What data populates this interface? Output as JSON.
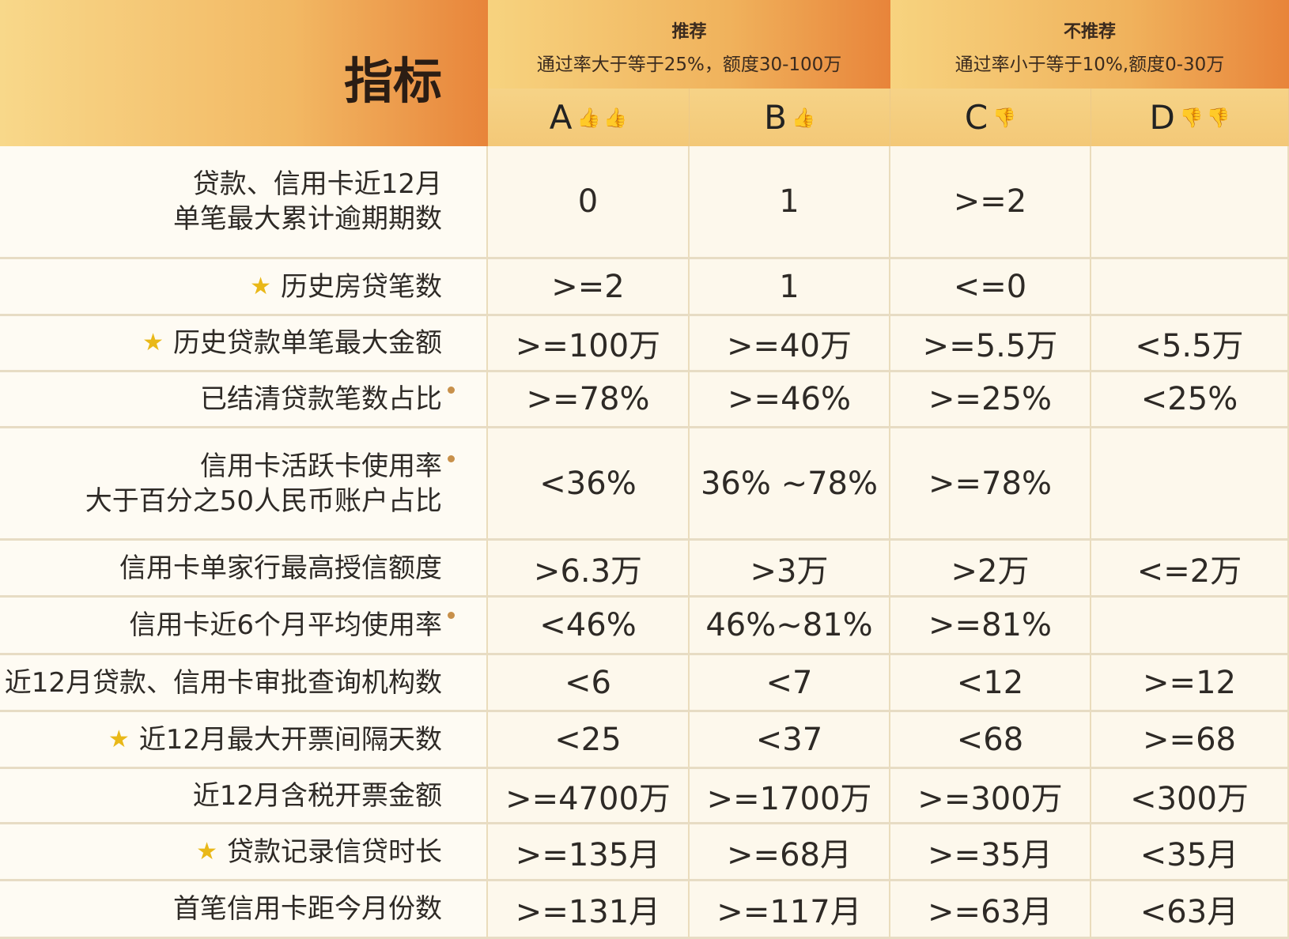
{
  "header": {
    "indicator_title": "指标",
    "groups": [
      {
        "title": "推荐",
        "subtitle": "通过率大于等于25%，额度30-100万"
      },
      {
        "title": "不推荐",
        "subtitle": "通过率小于等于10%,额度0-30万"
      }
    ],
    "columns": [
      {
        "label": "A",
        "icon": "thumbs-up-icon",
        "count": 2
      },
      {
        "label": "B",
        "icon": "thumbs-up-icon",
        "count": 1
      },
      {
        "label": "C",
        "icon": "thumbs-down-icon",
        "count": 1
      },
      {
        "label": "D",
        "icon": "thumbs-down-icon",
        "count": 2
      }
    ]
  },
  "colors": {
    "thumb_up": "#e5484d",
    "thumb_down": "#333333",
    "star": "#e9b818",
    "header_orange": "#e8843a",
    "header_yellow": "#f7d37f"
  },
  "rows": [
    {
      "label": "贷款、信用卡近12月\n单笔最大累计逾期期数",
      "star": false,
      "dot": false,
      "values": [
        "0",
        "1",
        ">=2",
        ""
      ]
    },
    {
      "label": "历史房贷笔数",
      "star": true,
      "dot": false,
      "values": [
        ">=2",
        "1",
        "<=0",
        ""
      ]
    },
    {
      "label": "历史贷款单笔最大金额",
      "star": true,
      "dot": false,
      "values": [
        ">=100万",
        ">=40万",
        ">=5.5万",
        "<5.5万"
      ]
    },
    {
      "label": "已结清贷款笔数占比",
      "star": false,
      "dot": true,
      "values": [
        ">=78%",
        ">=46%",
        ">=25%",
        "<25%"
      ]
    },
    {
      "label": "信用卡活跃卡使用率\n大于百分之50人民币账户占比",
      "star": false,
      "dot": true,
      "values": [
        "<36%",
        "36% ~78%",
        ">=78%",
        ""
      ]
    },
    {
      "label": "信用卡单家行最高授信额度",
      "star": false,
      "dot": false,
      "values": [
        ">6.3万",
        ">3万",
        ">2万",
        "<=2万"
      ]
    },
    {
      "label": "信用卡近6个月平均使用率",
      "star": false,
      "dot": true,
      "values": [
        "<46%",
        "46%~81%",
        ">=81%",
        ""
      ]
    },
    {
      "label": "近12月贷款、信用卡审批查询机构数",
      "star": false,
      "dot": false,
      "values": [
        "<6",
        "<7",
        "<12",
        ">=12"
      ]
    },
    {
      "label": "近12月最大开票间隔天数",
      "star": true,
      "dot": false,
      "values": [
        "<25",
        "<37",
        "<68",
        ">=68"
      ]
    },
    {
      "label": "近12月含税开票金额",
      "star": false,
      "dot": false,
      "values": [
        ">=4700万",
        ">=1700万",
        ">=300万",
        "<300万"
      ]
    },
    {
      "label": "贷款记录信贷时长",
      "star": true,
      "dot": false,
      "values": [
        ">=135月",
        ">=68月",
        ">=35月",
        "<35月"
      ]
    },
    {
      "label": "首笔信用卡距今月份数",
      "star": false,
      "dot": false,
      "values": [
        ">=131月",
        ">=117月",
        ">=63月",
        "<63月"
      ]
    }
  ]
}
